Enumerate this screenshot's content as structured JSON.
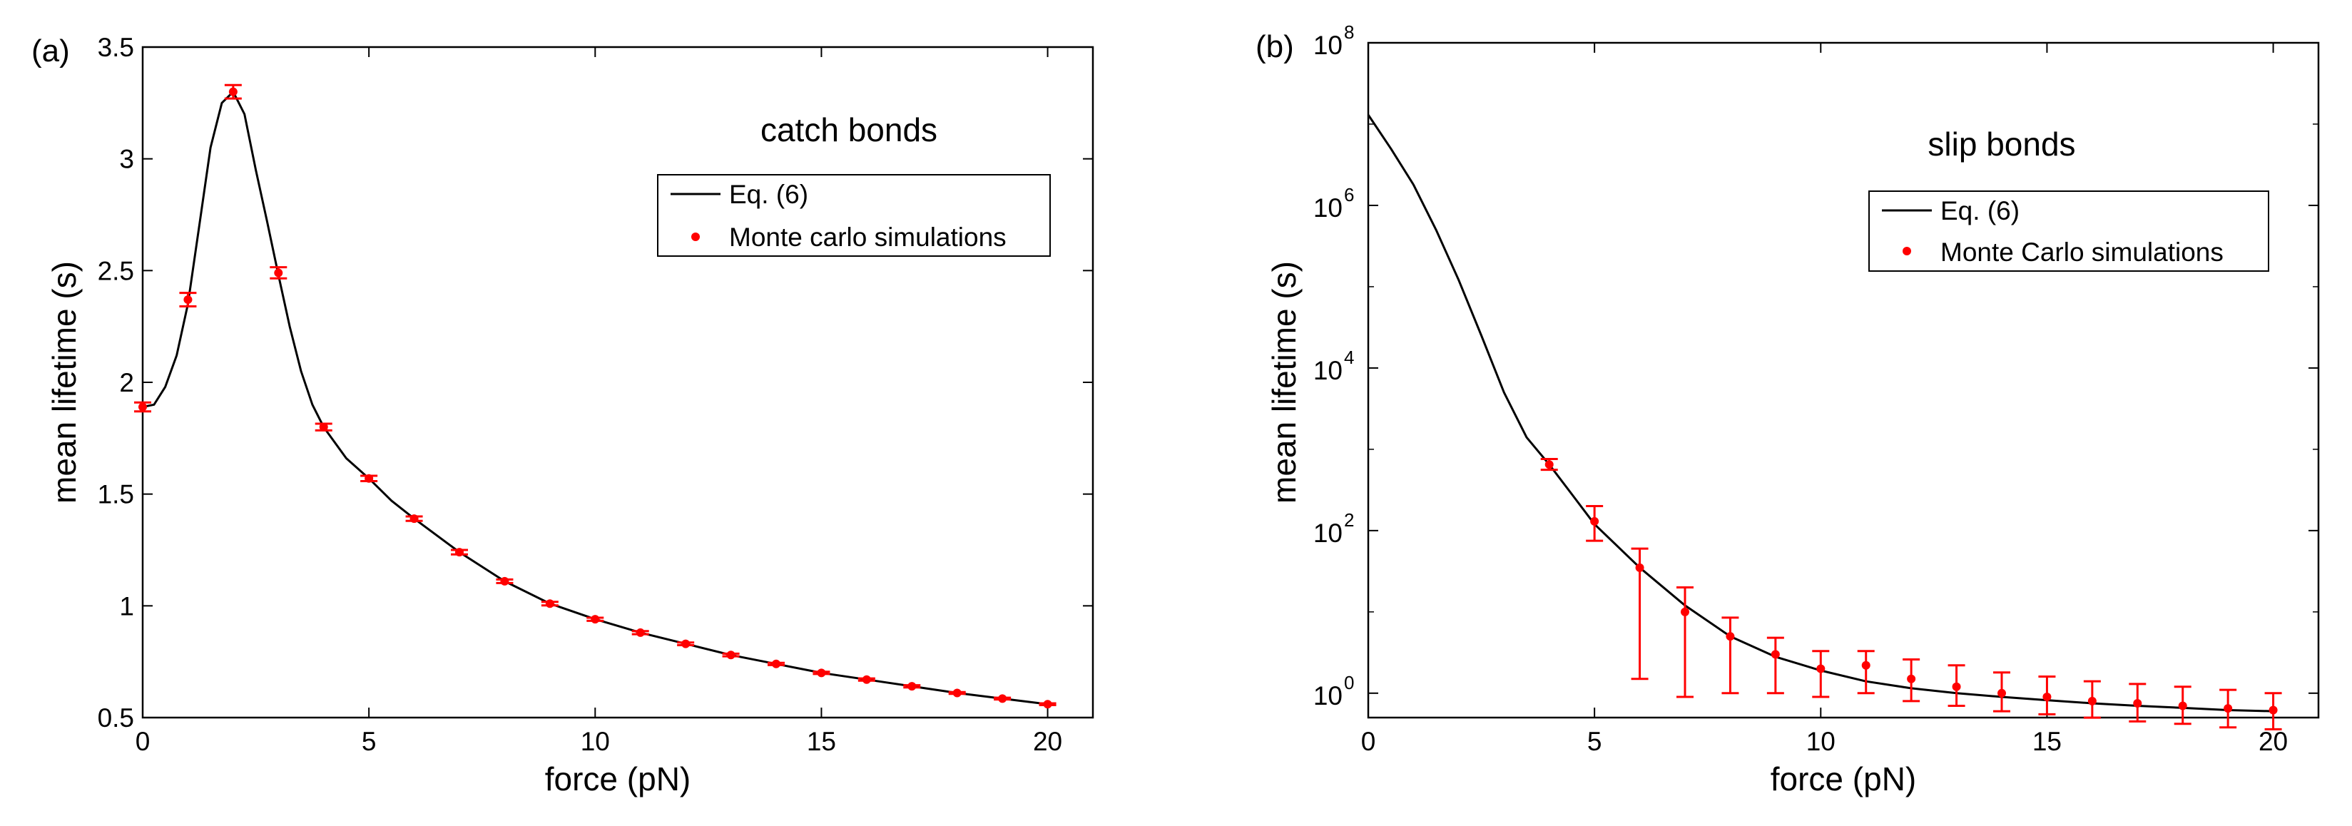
{
  "chart_data": [
    {
      "panel_label": "(a)",
      "type": "line",
      "title": "catch bonds",
      "xlabel": "force (pN)",
      "ylabel": "mean lifetime (s)",
      "xlim": [
        0,
        21
      ],
      "ylim": [
        0.5,
        3.5
      ],
      "yscale": "linear",
      "xticks": [
        0,
        5,
        10,
        15,
        20
      ],
      "xtick_labels": [
        "0",
        "5",
        "10",
        "15",
        "20"
      ],
      "yticks": [
        0.5,
        1,
        1.5,
        2,
        2.5,
        3,
        3.5
      ],
      "ytick_labels": [
        "0.5",
        "1",
        "1.5",
        "2",
        "2.5",
        "3",
        "3.5"
      ],
      "legend": {
        "position": "top-right",
        "line_label": "Eq. (6)",
        "points_label": "Monte carlo simulations"
      },
      "colors": {
        "line": "#000000",
        "points": "#ff0000"
      },
      "line": {
        "name": "Eq. (6)",
        "x": [
          0,
          0.25,
          0.5,
          0.75,
          1,
          1.25,
          1.5,
          1.75,
          2,
          2.25,
          2.5,
          2.75,
          3,
          3.25,
          3.5,
          3.75,
          4,
          4.5,
          5,
          5.5,
          6,
          7,
          8,
          9,
          10,
          11,
          12,
          13,
          14,
          15,
          16,
          17,
          18,
          19,
          20
        ],
        "y": [
          1.89,
          1.9,
          1.98,
          2.12,
          2.35,
          2.7,
          3.05,
          3.25,
          3.3,
          3.2,
          2.95,
          2.72,
          2.48,
          2.25,
          2.05,
          1.9,
          1.8,
          1.66,
          1.57,
          1.47,
          1.39,
          1.24,
          1.11,
          1.01,
          0.94,
          0.88,
          0.83,
          0.78,
          0.74,
          0.7,
          0.67,
          0.64,
          0.61,
          0.585,
          0.56
        ]
      },
      "points": {
        "name": "Monte carlo simulations",
        "x": [
          0,
          1,
          2,
          3,
          4,
          5,
          6,
          7,
          8,
          9,
          10,
          11,
          12,
          13,
          14,
          15,
          16,
          17,
          18,
          19,
          20
        ],
        "y": [
          1.89,
          2.37,
          3.3,
          2.49,
          1.8,
          1.57,
          1.39,
          1.24,
          1.11,
          1.01,
          0.94,
          0.88,
          0.83,
          0.78,
          0.74,
          0.7,
          0.67,
          0.64,
          0.61,
          0.585,
          0.56
        ],
        "err": [
          0.02,
          0.03,
          0.03,
          0.025,
          0.015,
          0.012,
          0.01,
          0.01,
          0.008,
          0.008,
          0.007,
          0.007,
          0.006,
          0.006,
          0.005,
          0.005,
          0.005,
          0.005,
          0.004,
          0.004,
          0.004
        ]
      }
    },
    {
      "panel_label": "(b)",
      "type": "line",
      "title": "slip bonds",
      "xlabel": "force (pN)",
      "ylabel": "mean lifetime (s)",
      "xlim": [
        0,
        21
      ],
      "ylim_log10": [
        -0.3,
        8
      ],
      "yscale": "log",
      "xticks": [
        0,
        5,
        10,
        15,
        20
      ],
      "xtick_labels": [
        "0",
        "5",
        "10",
        "15",
        "20"
      ],
      "yticks_log10": [
        0,
        2,
        4,
        6,
        8
      ],
      "ytick_base": "10",
      "ytick_exponents": [
        "0",
        "2",
        "4",
        "6",
        "8"
      ],
      "legend": {
        "position": "top-right",
        "line_label": "Eq. (6)",
        "points_label": "Monte Carlo simulations"
      },
      "colors": {
        "line": "#000000",
        "points": "#ff0000"
      },
      "line": {
        "name": "Eq. (6)",
        "x": [
          0,
          0.5,
          1,
          1.5,
          2,
          2.5,
          3,
          3.5,
          4,
          4.5,
          5,
          6,
          7,
          8,
          9,
          10,
          11,
          12,
          13,
          14,
          15,
          16,
          17,
          18,
          19,
          20
        ],
        "y": [
          13000000.0,
          5000000.0,
          1800000.0,
          500000.0,
          120000.0,
          25000.0,
          5000,
          1400,
          650,
          280,
          120,
          35,
          12,
          5,
          2.8,
          1.9,
          1.4,
          1.15,
          1.0,
          0.9,
          0.82,
          0.75,
          0.7,
          0.66,
          0.62,
          0.6
        ]
      },
      "points": {
        "name": "Monte Carlo simulations",
        "x": [
          4,
          5,
          6,
          7,
          8,
          9,
          10,
          11,
          12,
          13,
          14,
          15,
          16,
          17,
          18,
          19,
          20
        ],
        "y": [
          650,
          130,
          35,
          10,
          5,
          3,
          2,
          2.2,
          1.5,
          1.2,
          1.0,
          0.9,
          0.8,
          0.75,
          0.7,
          0.65,
          0.62
        ],
        "err_low": [
          560,
          75,
          1.5,
          0.9,
          1.0,
          1.0,
          0.9,
          1.0,
          0.8,
          0.7,
          0.6,
          0.55,
          0.5,
          0.45,
          0.42,
          0.38,
          0.36
        ],
        "err_high": [
          760,
          200,
          60,
          20,
          8.5,
          4.8,
          3.3,
          3.3,
          2.6,
          2.2,
          1.8,
          1.6,
          1.4,
          1.3,
          1.2,
          1.1,
          1.0
        ]
      }
    }
  ]
}
